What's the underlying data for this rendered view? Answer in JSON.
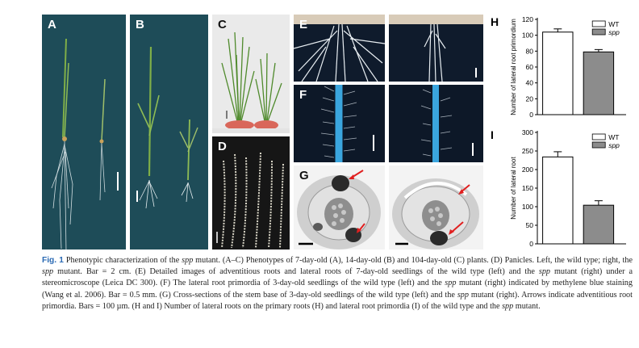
{
  "panels": {
    "a": "A",
    "b": "B",
    "c": "C",
    "d": "D",
    "e": "E",
    "f": "F",
    "g": "G",
    "h": "H",
    "i": "I"
  },
  "caption": {
    "fig_label": "Fig. 1",
    "segments": [
      {
        "t": " Phenotypic characterization of the ",
        "i": false
      },
      {
        "t": "spp",
        "i": true
      },
      {
        "t": " mutant. (A–C) Phenotypes of 7-day-old (A), 14-day-old (B) and 104-day-old (C) plants. (D) Panicles. Left, the wild type; right, the ",
        "i": false
      },
      {
        "t": "spp",
        "i": true
      },
      {
        "t": " mutant. Bar = 2 cm. (E) Detailed images of adventitious roots and lateral roots of 7-day-old seedlings of the wild type (left) and the ",
        "i": false
      },
      {
        "t": "spp",
        "i": true
      },
      {
        "t": " mutant (right) under a stereomicroscope (Leica DC 300). (F) The lateral root primordia of 3-day-old seedlings of the wild type (left) and the ",
        "i": false
      },
      {
        "t": "spp",
        "i": true
      },
      {
        "t": " mutant (right) indicated by methylene blue staining (Wang et al. 2006). Bar = 0.5 mm. (G) Cross-sections of the stem base of 3-day-old seedlings of the wild type (left) and the ",
        "i": false
      },
      {
        "t": "spp",
        "i": true
      },
      {
        "t": " mutant (right). Arrows indicate adventitious root primordia. Bars = 100 µm. (H and I) Number of lateral roots on the primary roots (H) and lateral root primordia (I) of the wild type and the ",
        "i": false
      },
      {
        "t": "spp",
        "i": true
      },
      {
        "t": " mutant.",
        "i": false
      }
    ]
  },
  "chart_data": [
    {
      "type": "bar",
      "panel": "H",
      "ylabel": "Number of lateral root primordium",
      "categories": [
        "WT",
        "spp"
      ],
      "values": [
        104,
        79
      ],
      "errors": [
        4,
        3
      ],
      "ylim": [
        0,
        120
      ],
      "yticks": [
        0,
        20,
        40,
        60,
        80,
        100,
        120
      ],
      "legend": [
        {
          "label": "WT",
          "fill": "#ffffff"
        },
        {
          "label": "spp",
          "fill": "#8c8c8c"
        }
      ],
      "legend_position": "top-right"
    },
    {
      "type": "bar",
      "panel": "I",
      "ylabel": "Number of lateral root",
      "categories": [
        "WT",
        "spp"
      ],
      "values": [
        234,
        104
      ],
      "errors": [
        14,
        12
      ],
      "ylim": [
        0,
        300
      ],
      "yticks": [
        0,
        50,
        100,
        150,
        200,
        250,
        300
      ],
      "legend": [
        {
          "label": "WT",
          "fill": "#ffffff"
        },
        {
          "label": "spp",
          "fill": "#8c8c8c"
        }
      ],
      "legend_position": "top-right"
    }
  ]
}
